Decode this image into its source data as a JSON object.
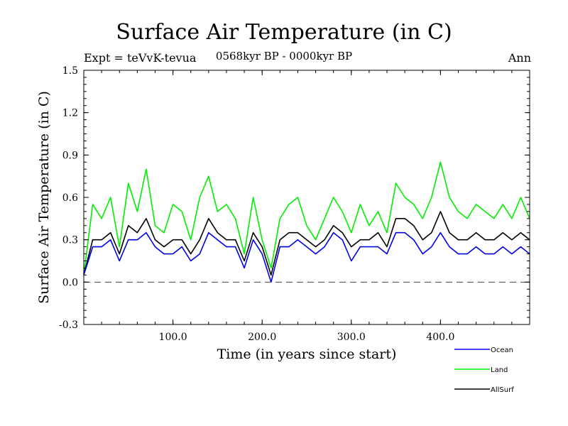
{
  "header": {
    "title": "Surface Air Temperature (in C)",
    "subtitle": "0568kyr BP - 0000kyr BP",
    "expt": "Expt = teVvK-tevua",
    "season": "Ann"
  },
  "chart_data": {
    "type": "line",
    "title": "Surface Air Temperature (in C)",
    "xlabel": "Time (in years since start)",
    "ylabel": "Surface Air Temperature (in C)",
    "xlim": [
      0,
      500
    ],
    "ylim": [
      -0.3,
      1.5
    ],
    "xticks": [
      100.0,
      200.0,
      300.0,
      400.0
    ],
    "xtick_labels": [
      "100.0",
      "200.0",
      "300.0",
      "400.0"
    ],
    "yticks": [
      -0.3,
      0.0,
      0.3,
      0.6,
      0.9,
      1.2,
      1.5
    ],
    "ytick_labels": [
      "-0.3",
      "0.0",
      "0.3",
      "0.6",
      "0.9",
      "1.2",
      "1.5"
    ],
    "reference_line": 0.0,
    "legend_position": "bottom-right, outside plot",
    "series": [
      {
        "name": "Land",
        "color": "#00ee00",
        "x": [
          0,
          10,
          20,
          30,
          40,
          50,
          60,
          70,
          80,
          90,
          100,
          110,
          120,
          130,
          140,
          150,
          160,
          170,
          180,
          190,
          200,
          210,
          220,
          230,
          240,
          250,
          260,
          270,
          280,
          290,
          300,
          310,
          320,
          330,
          340,
          350,
          360,
          370,
          380,
          390,
          400,
          410,
          420,
          430,
          440,
          450,
          460,
          470,
          480,
          490,
          500
        ],
        "values": [
          0.05,
          0.55,
          0.45,
          0.6,
          0.25,
          0.7,
          0.5,
          0.8,
          0.4,
          0.35,
          0.55,
          0.5,
          0.3,
          0.6,
          0.75,
          0.5,
          0.55,
          0.45,
          0.2,
          0.6,
          0.3,
          0.1,
          0.45,
          0.55,
          0.6,
          0.4,
          0.3,
          0.45,
          0.6,
          0.5,
          0.35,
          0.55,
          0.4,
          0.5,
          0.35,
          0.7,
          0.6,
          0.55,
          0.45,
          0.6,
          0.85,
          0.6,
          0.5,
          0.45,
          0.55,
          0.5,
          0.45,
          0.55,
          0.45,
          0.6,
          0.45
        ]
      },
      {
        "name": "AllSurf",
        "color": "#000000",
        "x": [
          0,
          10,
          20,
          30,
          40,
          50,
          60,
          70,
          80,
          90,
          100,
          110,
          120,
          130,
          140,
          150,
          160,
          170,
          180,
          190,
          200,
          210,
          220,
          230,
          240,
          250,
          260,
          270,
          280,
          290,
          300,
          310,
          320,
          330,
          340,
          350,
          360,
          370,
          380,
          390,
          400,
          410,
          420,
          430,
          440,
          450,
          460,
          470,
          480,
          490,
          500
        ],
        "values": [
          0.05,
          0.3,
          0.3,
          0.35,
          0.2,
          0.4,
          0.35,
          0.45,
          0.3,
          0.25,
          0.3,
          0.3,
          0.2,
          0.3,
          0.45,
          0.35,
          0.3,
          0.3,
          0.15,
          0.35,
          0.25,
          0.05,
          0.3,
          0.35,
          0.35,
          0.3,
          0.25,
          0.3,
          0.4,
          0.35,
          0.25,
          0.3,
          0.3,
          0.35,
          0.25,
          0.45,
          0.45,
          0.4,
          0.3,
          0.35,
          0.5,
          0.35,
          0.3,
          0.3,
          0.35,
          0.3,
          0.3,
          0.35,
          0.3,
          0.35,
          0.3
        ]
      },
      {
        "name": "Ocean",
        "color": "#0000ee",
        "x": [
          0,
          10,
          20,
          30,
          40,
          50,
          60,
          70,
          80,
          90,
          100,
          110,
          120,
          130,
          140,
          150,
          160,
          170,
          180,
          190,
          200,
          210,
          220,
          230,
          240,
          250,
          260,
          270,
          280,
          290,
          300,
          310,
          320,
          330,
          340,
          350,
          360,
          370,
          380,
          390,
          400,
          410,
          420,
          430,
          440,
          450,
          460,
          470,
          480,
          490,
          500
        ],
        "values": [
          0.05,
          0.25,
          0.25,
          0.3,
          0.15,
          0.3,
          0.3,
          0.35,
          0.25,
          0.2,
          0.2,
          0.25,
          0.15,
          0.2,
          0.35,
          0.3,
          0.25,
          0.25,
          0.1,
          0.3,
          0.2,
          0.0,
          0.25,
          0.25,
          0.3,
          0.25,
          0.2,
          0.25,
          0.35,
          0.3,
          0.15,
          0.25,
          0.25,
          0.25,
          0.2,
          0.35,
          0.35,
          0.3,
          0.2,
          0.25,
          0.35,
          0.25,
          0.2,
          0.2,
          0.25,
          0.2,
          0.2,
          0.25,
          0.2,
          0.25,
          0.2
        ]
      }
    ]
  },
  "legend": [
    {
      "label": "Ocean",
      "color": "#0000ee"
    },
    {
      "label": "Land",
      "color": "#00ee00"
    },
    {
      "label": "AllSurf",
      "color": "#000000"
    }
  ]
}
